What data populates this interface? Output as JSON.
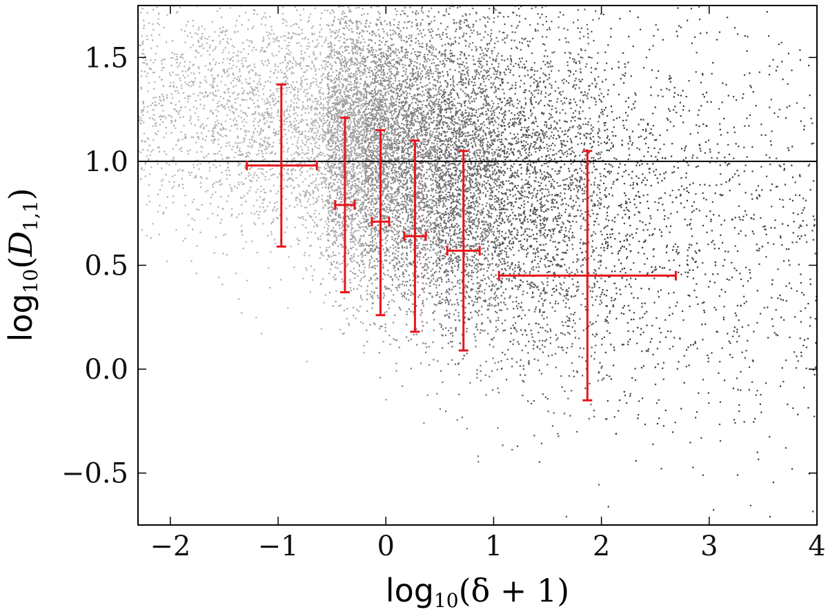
{
  "chart_data": {
    "type": "scatter",
    "title": "",
    "xlabel_parts": {
      "fn": "log",
      "base": "10",
      "arg": "(δ + 1)"
    },
    "ylabel_parts": {
      "fn": "log",
      "base": "10",
      "open": "(",
      "var": "D",
      "sub": "1,1",
      "close": ")"
    },
    "xlim": [
      -2.3,
      4.0
    ],
    "ylim": [
      -0.75,
      1.75
    ],
    "xticks": [
      -2,
      -1,
      0,
      1,
      2,
      3,
      4
    ],
    "xtick_labels": [
      "−2",
      "−1",
      "0",
      "1",
      "2",
      "3",
      "4"
    ],
    "yticks": [
      -0.5,
      0.0,
      0.5,
      1.0,
      1.5
    ],
    "ytick_labels": [
      "−0.5",
      "0.0",
      "0.5",
      "1.0",
      "1.5"
    ],
    "reference_line_y": 1.0,
    "grid": false,
    "colors": {
      "errorbars": "#e8141a",
      "reference_line": "#000000",
      "bins": [
        "#b0b0b0",
        "#a0a0a0",
        "#8e8e8e",
        "#7e7e7e",
        "#6a6a6a",
        "#555555",
        "#3a3a3a"
      ]
    },
    "density_bins": [
      {
        "x_range": [
          -2.3,
          -0.55
        ],
        "count": 5200
      },
      {
        "x_range": [
          -0.55,
          -0.2
        ],
        "count": 1900
      },
      {
        "x_range": [
          -0.2,
          0.1
        ],
        "count": 1800
      },
      {
        "x_range": [
          0.1,
          0.48
        ],
        "count": 1900
      },
      {
        "x_range": [
          0.48,
          1.05
        ],
        "count": 2600
      },
      {
        "x_range": [
          1.05,
          2.0
        ],
        "count": 2500
      },
      {
        "x_range": [
          2.0,
          4.0
        ],
        "count": 2000
      }
    ],
    "errorbars": [
      {
        "x": -0.97,
        "y": 0.98,
        "xerr": [
          0.32,
          0.33
        ],
        "yerr": [
          0.39,
          0.39
        ]
      },
      {
        "x": -0.38,
        "y": 0.79,
        "xerr": [
          0.09,
          0.09
        ],
        "yerr": [
          0.42,
          0.42
        ]
      },
      {
        "x": -0.05,
        "y": 0.71,
        "xerr": [
          0.08,
          0.08
        ],
        "yerr": [
          0.45,
          0.44
        ]
      },
      {
        "x": 0.27,
        "y": 0.64,
        "xerr": [
          0.1,
          0.1
        ],
        "yerr": [
          0.46,
          0.46
        ]
      },
      {
        "x": 0.72,
        "y": 0.57,
        "xerr": [
          0.15,
          0.15
        ],
        "yerr": [
          0.48,
          0.48
        ]
      },
      {
        "x": 1.87,
        "y": 0.45,
        "xerr": [
          0.82,
          0.82
        ],
        "yerr": [
          0.6,
          0.6
        ]
      }
    ]
  }
}
